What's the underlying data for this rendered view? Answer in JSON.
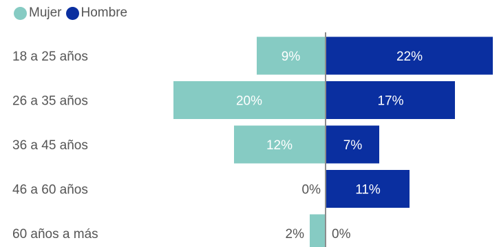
{
  "chart_data": {
    "type": "bar",
    "orientation": "horizontal-diverging",
    "categories": [
      "18 a 25 años",
      "26 a 35 años",
      "36 a 45 años",
      "46 a 60 años",
      "60 años a más"
    ],
    "series": [
      {
        "name": "Mujer",
        "color": "#86CBC3",
        "values": [
          9,
          20,
          12,
          0,
          2
        ],
        "labels": [
          "9%",
          "20%",
          "12%",
          "0%",
          "2%"
        ]
      },
      {
        "name": "Hombre",
        "color": "#0A2FA0",
        "values": [
          22,
          17,
          7,
          11,
          0
        ],
        "labels": [
          "22%",
          "17%",
          "7%",
          "11%",
          "0%"
        ]
      }
    ],
    "unit": "%",
    "legend_position": "top-left",
    "grid": false
  }
}
